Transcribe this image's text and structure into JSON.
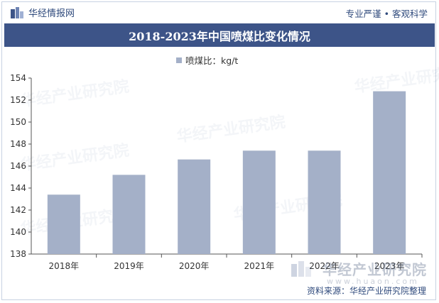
{
  "header": {
    "brand": "华经情报网",
    "tagline": "专业严谨 • 客观科学"
  },
  "chart_data": {
    "type": "bar",
    "title": "2018-2023年中国喷煤比变化情况",
    "legend": "喷煤比：kg/t",
    "categories": [
      "2018年",
      "2019年",
      "2020年",
      "2021年",
      "2022年",
      "2023年"
    ],
    "series": [
      {
        "name": "喷煤比：kg/t",
        "values": [
          143.4,
          145.2,
          146.6,
          147.4,
          147.4,
          152.8
        ]
      }
    ],
    "ylim": [
      138,
      154
    ],
    "yticks": [
      "138",
      "140",
      "142",
      "144",
      "146",
      "148",
      "150",
      "152",
      "154"
    ],
    "bar_color": "#a4b0c8",
    "grid": false,
    "legend_position": "top-center"
  },
  "watermark": {
    "text": "华经产业研究院",
    "site": "www.huaon.com"
  },
  "footer": {
    "source": "资料来源：华经产业研究院整理"
  }
}
